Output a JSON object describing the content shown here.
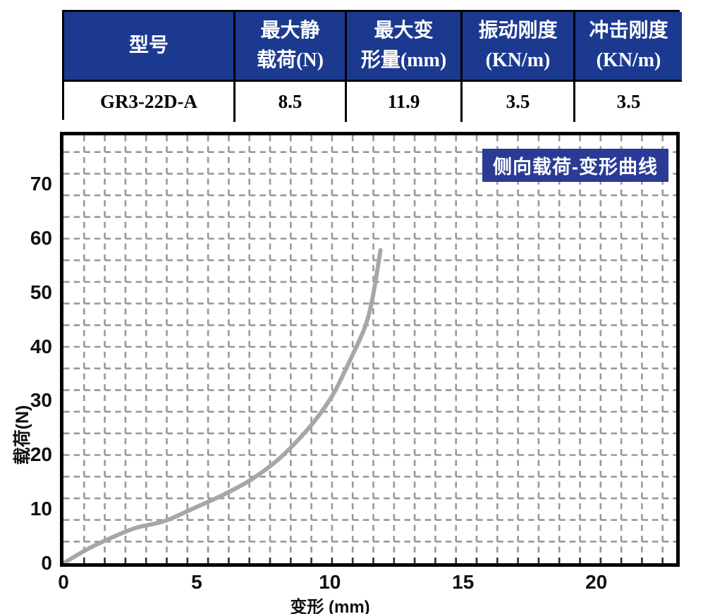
{
  "table": {
    "headers": [
      {
        "lines": [
          "型号"
        ]
      },
      {
        "lines": [
          "最大静",
          "载荷(N)"
        ]
      },
      {
        "lines": [
          "最大变",
          "形量(mm)"
        ]
      },
      {
        "lines": [
          "振动刚度",
          "(KN/m)"
        ]
      },
      {
        "lines": [
          "冲击刚度",
          "(KN/m)"
        ]
      }
    ],
    "rows": [
      [
        "GR3-22D-A",
        "8.5",
        "11.9",
        "3.5",
        "3.5"
      ]
    ]
  },
  "chart": {
    "badge": "侧向载荷-变形曲线",
    "xlabel": "变形 (mm)",
    "ylabel": "载荷(N)"
  },
  "chart_data": {
    "type": "line",
    "title": "侧向载荷-变形曲线",
    "xlabel": "变形 (mm)",
    "ylabel": "载荷(N)",
    "xlim": [
      0,
      23
    ],
    "ylim": [
      0,
      79
    ],
    "x_ticks": [
      0,
      5,
      10,
      15,
      20
    ],
    "y_ticks": [
      0,
      10,
      20,
      30,
      40,
      50,
      60,
      70
    ],
    "grid": "dashed",
    "legend_position": "none",
    "series": [
      {
        "name": "侧向载荷-变形曲线",
        "color": "#a7a7a7",
        "points": [
          [
            0,
            0
          ],
          [
            0.9,
            2.6
          ],
          [
            1.75,
            4.6
          ],
          [
            2.7,
            6.5
          ],
          [
            3.8,
            7.8
          ],
          [
            5.0,
            10.4
          ],
          [
            5.9,
            12.4
          ],
          [
            7.0,
            15.3
          ],
          [
            8.0,
            18.9
          ],
          [
            8.7,
            22.2
          ],
          [
            9.4,
            26.1
          ],
          [
            10.1,
            31.0
          ],
          [
            10.7,
            36.9
          ],
          [
            11.3,
            43.4
          ],
          [
            11.6,
            48.9
          ],
          [
            11.9,
            57.8
          ]
        ]
      }
    ]
  },
  "colors": {
    "table_header_bg": "#1b3a8f",
    "badge_bg": "#2b3a94",
    "curve": "#a7a7a7",
    "grid": "#98989c",
    "border": "#000000"
  }
}
